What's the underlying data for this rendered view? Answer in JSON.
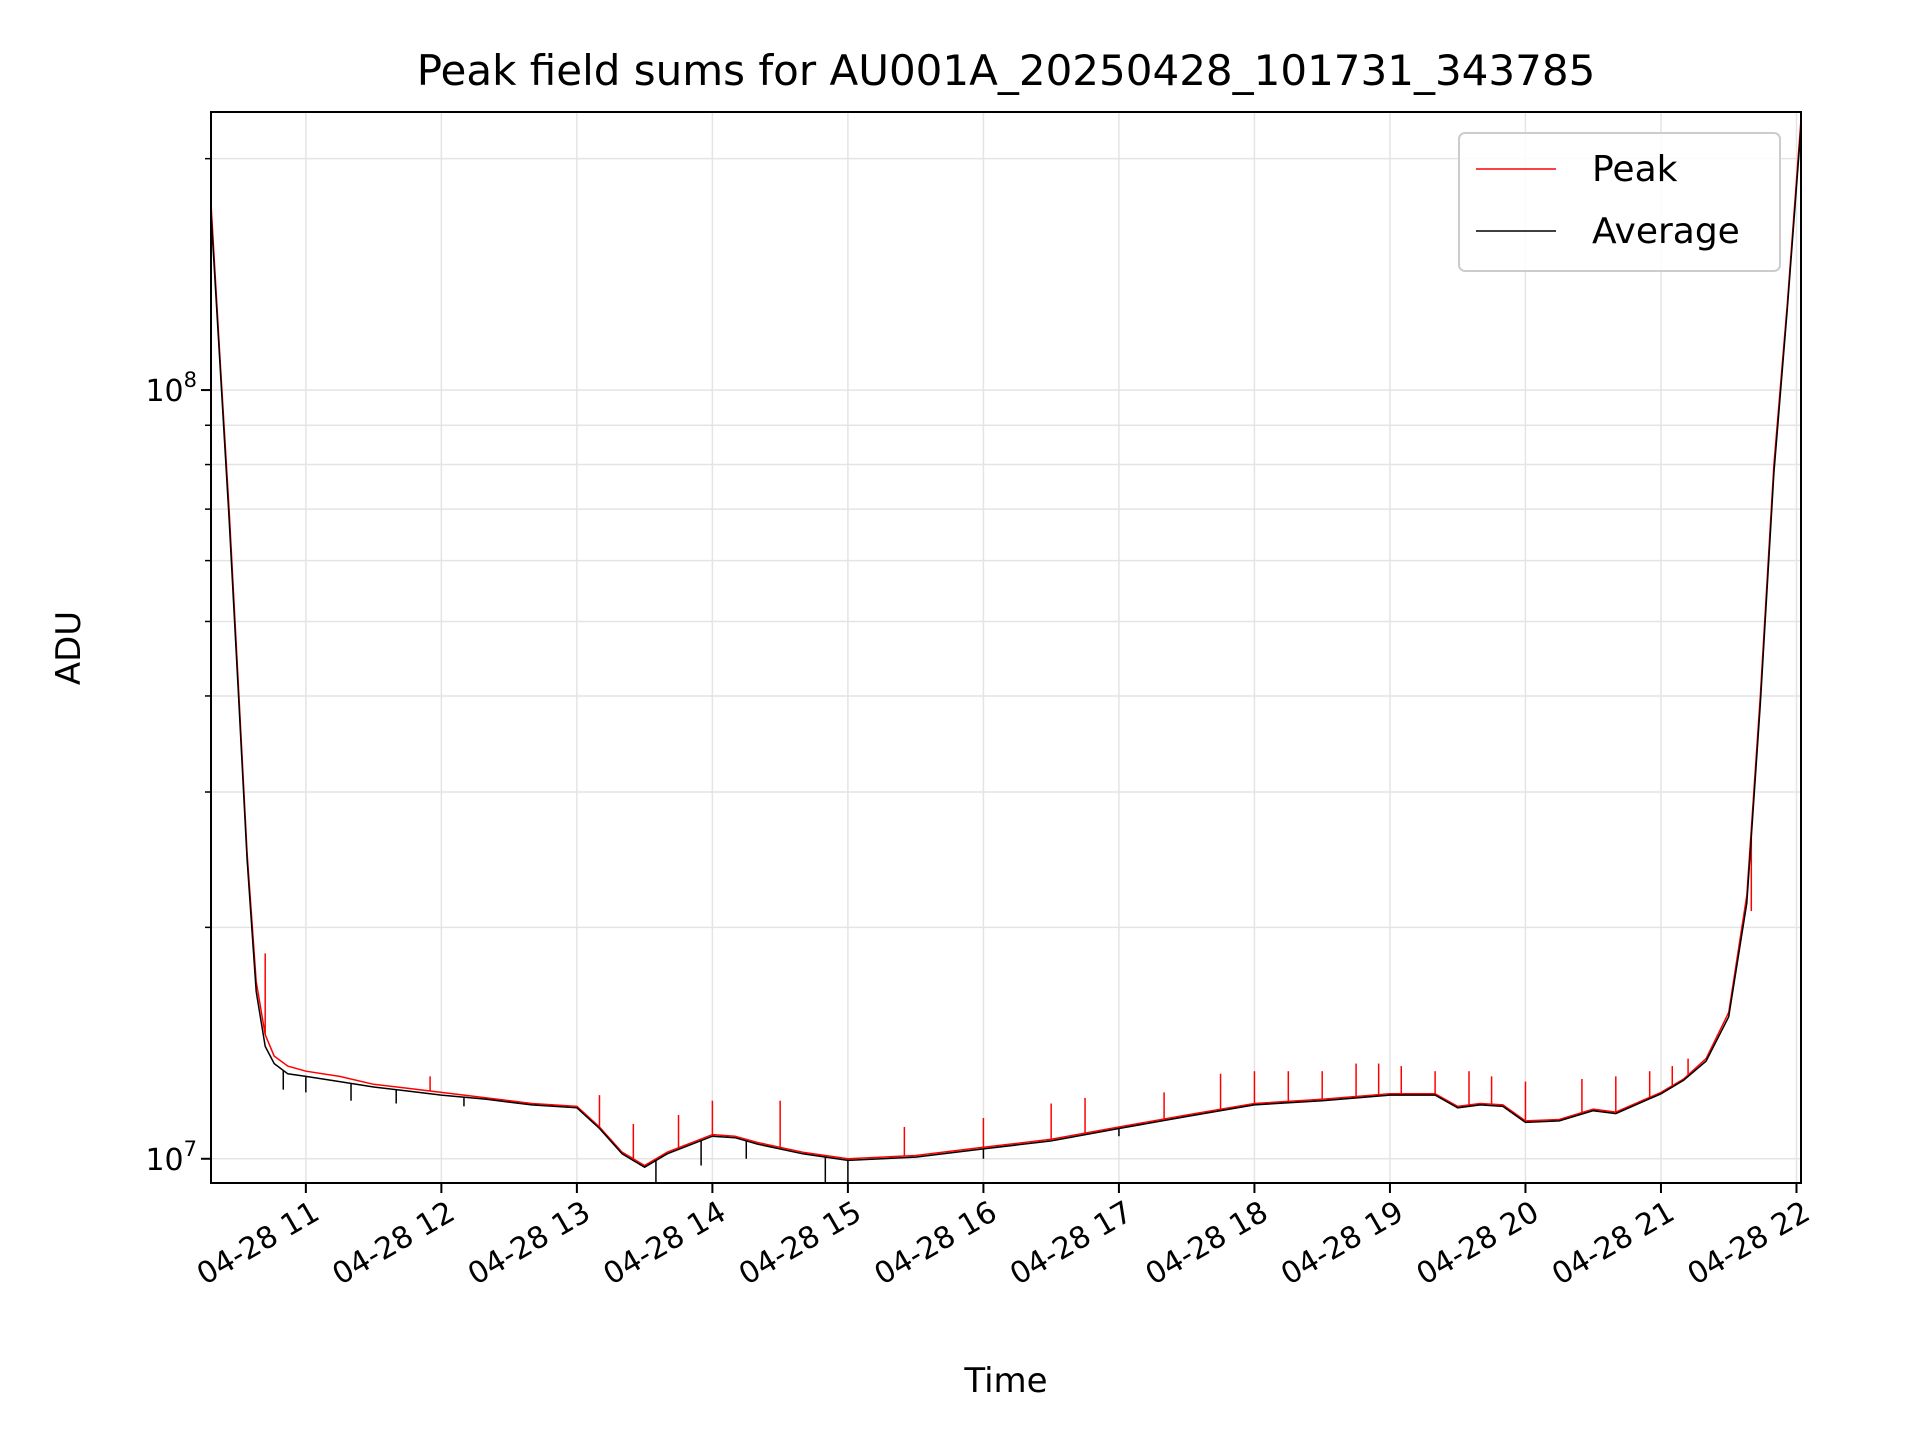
{
  "chart_data": {
    "type": "line",
    "title": "Peak field sums for AU001A_20250428_101731_343785",
    "xlabel": "Time",
    "ylabel": "ADU",
    "yscale": "log",
    "xlim": [
      "04-28 10:18",
      "04-28 22:02"
    ],
    "ylim": [
      9300000,
      230000000
    ],
    "grid": true,
    "legend": "top-right",
    "x_ticks": [
      "04-28 11",
      "04-28 12",
      "04-28 13",
      "04-28 14",
      "04-28 15",
      "04-28 16",
      "04-28 17",
      "04-28 18",
      "04-28 19",
      "04-28 20",
      "04-28 21",
      "04-28 22"
    ],
    "y_ticks": [
      {
        "value": 10000000,
        "base": "10",
        "exp": "7"
      },
      {
        "value": 100000000,
        "base": "10",
        "exp": "8"
      }
    ],
    "colors": {
      "peak": "#ff0000",
      "average": "#000000"
    },
    "x": [
      "04-28 10:18",
      "04-28 10:22",
      "04-28 10:26",
      "04-28 10:30",
      "04-28 10:34",
      "04-28 10:38",
      "04-28 10:42",
      "04-28 10:46",
      "04-28 10:52",
      "04-28 11:00",
      "04-28 11:15",
      "04-28 11:30",
      "04-28 11:45",
      "04-28 12:00",
      "04-28 12:20",
      "04-28 12:40",
      "04-28 13:00",
      "04-28 13:10",
      "04-28 13:20",
      "04-28 13:30",
      "04-28 13:40",
      "04-28 14:00",
      "04-28 14:10",
      "04-28 14:20",
      "04-28 14:40",
      "04-28 15:00",
      "04-28 15:30",
      "04-28 16:00",
      "04-28 16:30",
      "04-28 17:00",
      "04-28 17:30",
      "04-28 18:00",
      "04-28 18:30",
      "04-28 19:00",
      "04-28 19:20",
      "04-28 19:30",
      "04-28 19:40",
      "04-28 19:50",
      "04-28 20:00",
      "04-28 20:15",
      "04-28 20:30",
      "04-28 20:40",
      "04-28 21:00",
      "04-28 21:10",
      "04-28 21:20",
      "04-28 21:30",
      "04-28 21:38",
      "04-28 21:44",
      "04-28 21:50",
      "04-28 21:56",
      "04-28 22:02"
    ],
    "series": [
      {
        "name": "Peak",
        "values": [
          175000000,
          110000000,
          70000000,
          42000000,
          25000000,
          17000000,
          14500000,
          13600000,
          13200000,
          13000000,
          12800000,
          12500000,
          12350000,
          12200000,
          12000000,
          11800000,
          11700000,
          11000000,
          10200000,
          9800000,
          10200000,
          10750000,
          10700000,
          10500000,
          10200000,
          10000000,
          10100000,
          10350000,
          10600000,
          11000000,
          11400000,
          11800000,
          11950000,
          12150000,
          12150000,
          11700000,
          11800000,
          11750000,
          11200000,
          11250000,
          11600000,
          11500000,
          12200000,
          12700000,
          13500000,
          15500000,
          22000000,
          40000000,
          80000000,
          130000000,
          225000000
        ],
        "spikes": [
          {
            "x": "04-28 10:42",
            "value": 18500000
          },
          {
            "x": "04-28 11:55",
            "value": 12800000
          },
          {
            "x": "04-28 13:10",
            "value": 12100000
          },
          {
            "x": "04-28 13:25",
            "value": 11100000
          },
          {
            "x": "04-28 13:45",
            "value": 11400000
          },
          {
            "x": "04-28 14:00",
            "value": 11900000
          },
          {
            "x": "04-28 14:30",
            "value": 11900000
          },
          {
            "x": "04-28 15:25",
            "value": 11000000
          },
          {
            "x": "04-28 16:00",
            "value": 11300000
          },
          {
            "x": "04-28 16:30",
            "value": 11800000
          },
          {
            "x": "04-28 16:45",
            "value": 12000000
          },
          {
            "x": "04-28 17:20",
            "value": 12200000
          },
          {
            "x": "04-28 17:45",
            "value": 12900000
          },
          {
            "x": "04-28 18:00",
            "value": 13000000
          },
          {
            "x": "04-28 18:15",
            "value": 13000000
          },
          {
            "x": "04-28 18:30",
            "value": 13000000
          },
          {
            "x": "04-28 18:45",
            "value": 13300000
          },
          {
            "x": "04-28 18:55",
            "value": 13300000
          },
          {
            "x": "04-28 19:05",
            "value": 13200000
          },
          {
            "x": "04-28 19:20",
            "value": 13000000
          },
          {
            "x": "04-28 19:35",
            "value": 13000000
          },
          {
            "x": "04-28 19:45",
            "value": 12800000
          },
          {
            "x": "04-28 20:00",
            "value": 12600000
          },
          {
            "x": "04-28 20:25",
            "value": 12700000
          },
          {
            "x": "04-28 20:40",
            "value": 12800000
          },
          {
            "x": "04-28 20:55",
            "value": 13000000
          },
          {
            "x": "04-28 21:05",
            "value": 13200000
          },
          {
            "x": "04-28 21:12",
            "value": 13500000
          },
          {
            "x": "04-28 21:25",
            "value": 14500000
          },
          {
            "x": "04-28 21:40",
            "value": 21000000
          }
        ]
      },
      {
        "name": "Average",
        "values": [
          170000000,
          108000000,
          68000000,
          41000000,
          24500000,
          16500000,
          14000000,
          13300000,
          12900000,
          12800000,
          12600000,
          12400000,
          12250000,
          12100000,
          11950000,
          11750000,
          11650000,
          10950000,
          10150000,
          9750000,
          10150000,
          10700000,
          10650000,
          10450000,
          10150000,
          9950000,
          10050000,
          10300000,
          10550000,
          10950000,
          11350000,
          11750000,
          11900000,
          12100000,
          12100000,
          11650000,
          11750000,
          11700000,
          11150000,
          11200000,
          11550000,
          11450000,
          12150000,
          12650000,
          13400000,
          15300000,
          21500000,
          39000000,
          78000000,
          128000000,
          220000000
        ],
        "dips": [
          {
            "x": "04-28 10:50",
            "value": 12300000
          },
          {
            "x": "04-28 11:00",
            "value": 12200000
          },
          {
            "x": "04-28 11:20",
            "value": 11900000
          },
          {
            "x": "04-28 11:40",
            "value": 11800000
          },
          {
            "x": "04-28 12:10",
            "value": 11700000
          },
          {
            "x": "04-28 13:35",
            "value": 9300000
          },
          {
            "x": "04-28 13:55",
            "value": 9800000
          },
          {
            "x": "04-28 14:15",
            "value": 10000000
          },
          {
            "x": "04-28 14:50",
            "value": 9300000
          },
          {
            "x": "04-28 15:00",
            "value": 9300000
          },
          {
            "x": "04-28 16:00",
            "value": 10000000
          },
          {
            "x": "04-28 17:00",
            "value": 10700000
          }
        ]
      }
    ]
  }
}
